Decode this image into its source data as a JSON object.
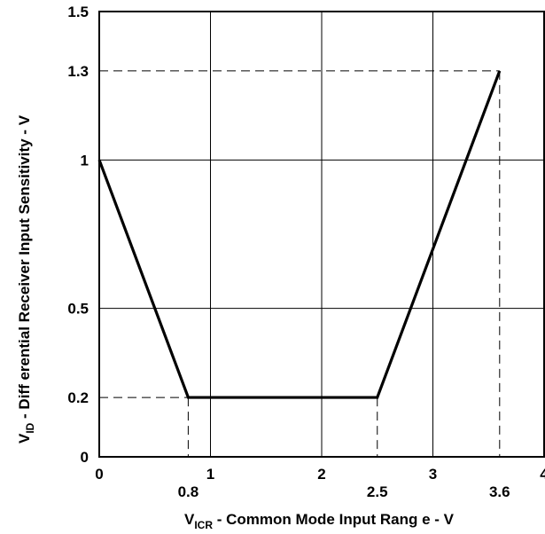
{
  "chart_data": {
    "type": "line",
    "xlabel": "V",
    "xlabel_sub": "ICR",
    "xlabel_rest": " - Common Mode Input Rang e -  V",
    "ylabel": "V",
    "ylabel_sub": "ID",
    "ylabel_rest": "   - Diff erential Receiver Input Sensitivity - V",
    "xlim": [
      0,
      4
    ],
    "ylim": [
      0,
      1.5
    ],
    "grid": true,
    "x_ticks": [
      {
        "value": 0,
        "label": "0"
      },
      {
        "value": 1,
        "label": "1"
      },
      {
        "value": 2,
        "label": "2"
      },
      {
        "value": 3,
        "label": "3"
      },
      {
        "value": 4,
        "label": "4"
      }
    ],
    "x_ref_ticks": [
      {
        "value": 0.8,
        "label": "0.8"
      },
      {
        "value": 2.5,
        "label": "2.5"
      },
      {
        "value": 3.6,
        "label": "3.6"
      }
    ],
    "y_ticks": [
      {
        "value": 0,
        "label": "0"
      },
      {
        "value": 0.2,
        "label": "0.2"
      },
      {
        "value": 0.5,
        "label": "0.5"
      },
      {
        "value": 1,
        "label": "1"
      },
      {
        "value": 1.3,
        "label": "1.3"
      },
      {
        "value": 1.5,
        "label": "1.5"
      }
    ],
    "x_grid": [
      1,
      2,
      3
    ],
    "y_grid": [
      0.5,
      1
    ],
    "series": [
      {
        "x": [
          0,
          0.8,
          2.5,
          3.6
        ],
        "y": [
          1,
          0.2,
          0.2,
          1.3
        ]
      }
    ],
    "reference_lines": [
      {
        "from": [
          0,
          0.2
        ],
        "to": [
          0.8,
          0.2
        ]
      },
      {
        "from": [
          0.8,
          0.2
        ],
        "to": [
          0.8,
          0
        ]
      },
      {
        "from": [
          2.5,
          0.2
        ],
        "to": [
          2.5,
          0
        ]
      },
      {
        "from": [
          3.6,
          1.3
        ],
        "to": [
          3.6,
          0
        ]
      },
      {
        "from": [
          0,
          1.3
        ],
        "to": [
          3.6,
          1.3
        ]
      }
    ]
  }
}
